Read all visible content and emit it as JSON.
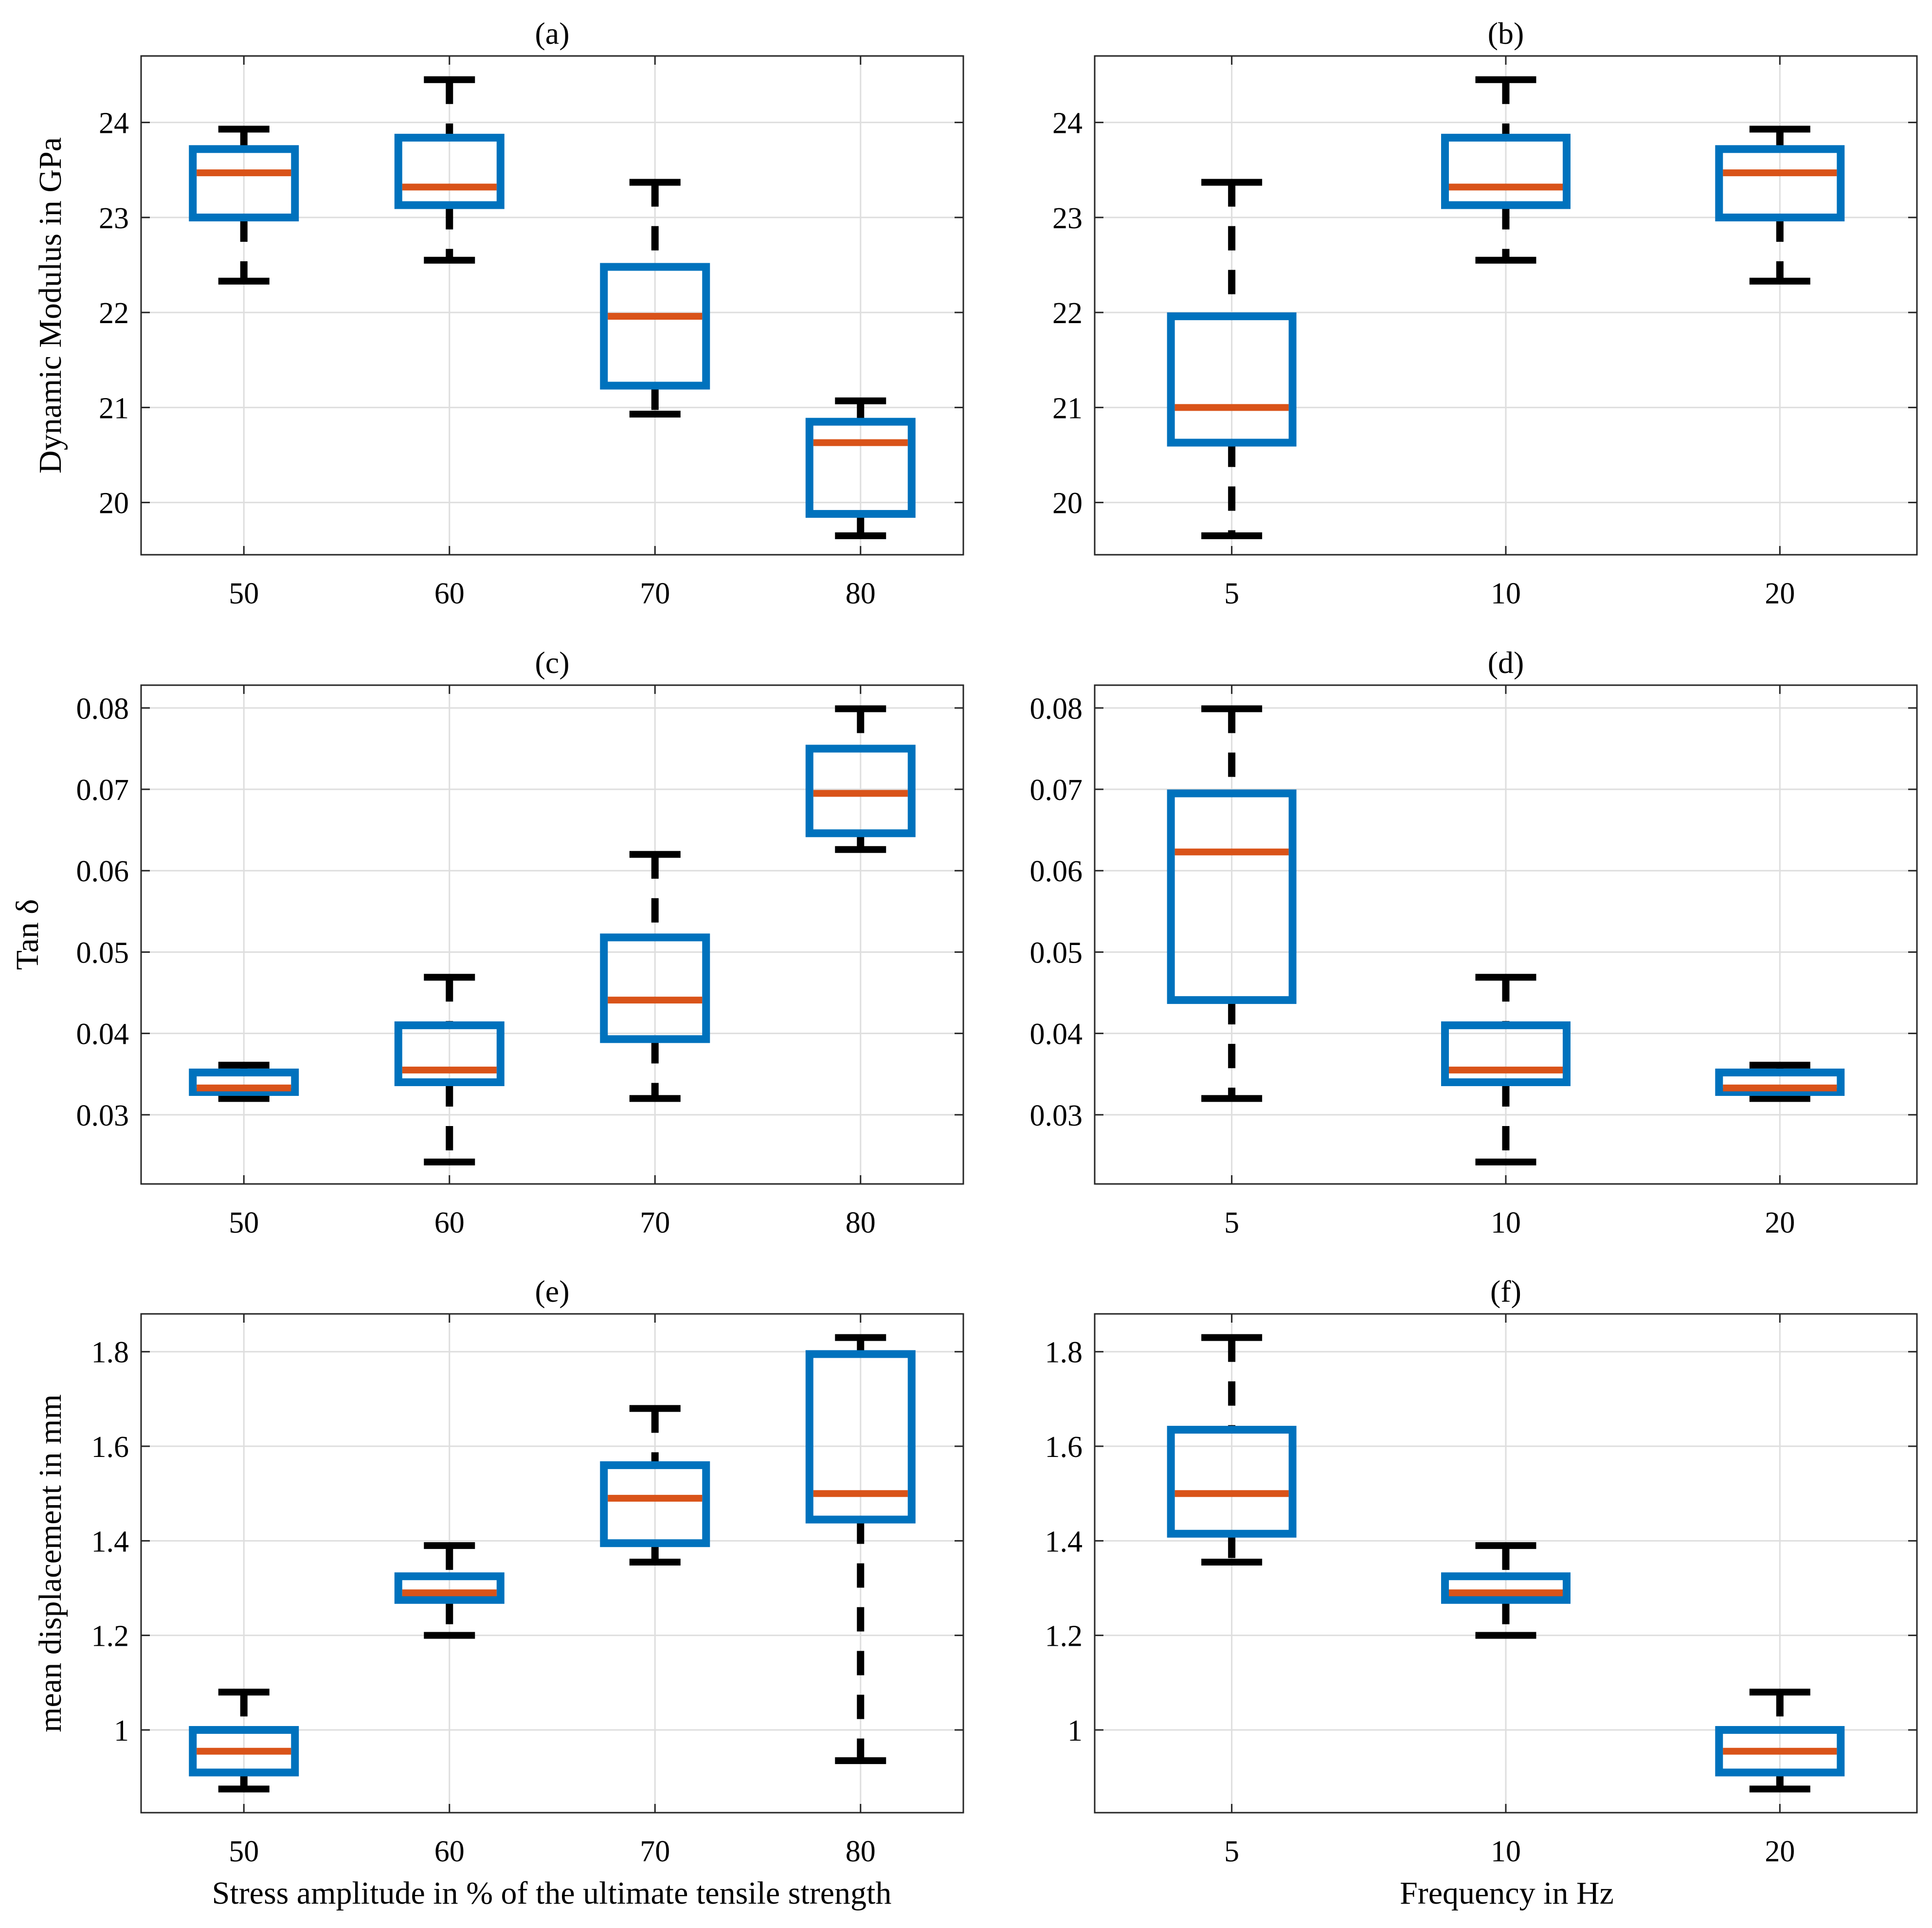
{
  "colors": {
    "box": "#0072BD",
    "median": "#D95319",
    "whisker": "#000000",
    "grid": "#DEDEDE",
    "axis": "#262626"
  },
  "xlabels": {
    "stress": "Stress amplitude in % of the ultimate tensile strength",
    "frequency": "Frequency in Hz"
  },
  "chart_data": [
    {
      "type": "box",
      "title": "(a)",
      "ylabel": "Dynamic Modulus in GPa",
      "xlabel": "",
      "categories": [
        "50",
        "60",
        "70",
        "80"
      ],
      "ylim": [
        19.45,
        24.7
      ],
      "yticks": [
        20,
        21,
        22,
        23,
        24
      ],
      "yticklabels": [
        "20",
        "21",
        "22",
        "23",
        "24"
      ],
      "grid": true,
      "boxes": [
        {
          "whisker_low": 22.33,
          "q1": 23.0,
          "median": 23.47,
          "q3": 23.72,
          "whisker_high": 23.93
        },
        {
          "whisker_low": 22.55,
          "q1": 23.13,
          "median": 23.32,
          "q3": 23.84,
          "whisker_high": 24.45
        },
        {
          "whisker_low": 20.93,
          "q1": 21.23,
          "median": 21.96,
          "q3": 22.48,
          "whisker_high": 23.37
        },
        {
          "whisker_low": 19.65,
          "q1": 19.88,
          "median": 20.63,
          "q3": 20.85,
          "whisker_high": 21.07
        }
      ]
    },
    {
      "type": "box",
      "title": "(b)",
      "ylabel": "",
      "xlabel": "",
      "categories": [
        "5",
        "10",
        "20"
      ],
      "ylim": [
        19.45,
        24.7
      ],
      "yticks": [
        20,
        21,
        22,
        23,
        24
      ],
      "yticklabels": [
        "20",
        "21",
        "22",
        "23",
        "24"
      ],
      "grid": true,
      "boxes": [
        {
          "whisker_low": 19.65,
          "q1": 20.63,
          "median": 21.0,
          "q3": 21.96,
          "whisker_high": 23.37
        },
        {
          "whisker_low": 22.55,
          "q1": 23.13,
          "median": 23.32,
          "q3": 23.84,
          "whisker_high": 24.45
        },
        {
          "whisker_low": 22.33,
          "q1": 23.0,
          "median": 23.47,
          "q3": 23.72,
          "whisker_high": 23.93
        }
      ]
    },
    {
      "type": "box",
      "title": "(c)",
      "ylabel": "Tan δ",
      "xlabel": "",
      "categories": [
        "50",
        "60",
        "70",
        "80"
      ],
      "ylim": [
        0.0215,
        0.0828
      ],
      "yticks": [
        0.03,
        0.04,
        0.05,
        0.06,
        0.07,
        0.08
      ],
      "yticklabels": [
        "0.03",
        "0.04",
        "0.05",
        "0.06",
        "0.07",
        "0.08"
      ],
      "grid": true,
      "boxes": [
        {
          "whisker_low": 0.032,
          "q1": 0.0328,
          "median": 0.0333,
          "q3": 0.0352,
          "whisker_high": 0.0361
        },
        {
          "whisker_low": 0.0242,
          "q1": 0.034,
          "median": 0.0355,
          "q3": 0.041,
          "whisker_high": 0.0469
        },
        {
          "whisker_low": 0.032,
          "q1": 0.0393,
          "median": 0.0441,
          "q3": 0.0518,
          "whisker_high": 0.062
        },
        {
          "whisker_low": 0.0626,
          "q1": 0.0646,
          "median": 0.0695,
          "q3": 0.075,
          "whisker_high": 0.0799
        }
      ]
    },
    {
      "type": "box",
      "title": "(d)",
      "ylabel": "",
      "xlabel": "",
      "categories": [
        "5",
        "10",
        "20"
      ],
      "ylim": [
        0.0215,
        0.0828
      ],
      "yticks": [
        0.03,
        0.04,
        0.05,
        0.06,
        0.07,
        0.08
      ],
      "yticklabels": [
        "0.03",
        "0.04",
        "0.05",
        "0.06",
        "0.07",
        "0.08"
      ],
      "grid": true,
      "boxes": [
        {
          "whisker_low": 0.032,
          "q1": 0.0441,
          "median": 0.0623,
          "q3": 0.0695,
          "whisker_high": 0.0799
        },
        {
          "whisker_low": 0.0242,
          "q1": 0.034,
          "median": 0.0355,
          "q3": 0.041,
          "whisker_high": 0.0469
        },
        {
          "whisker_low": 0.032,
          "q1": 0.0328,
          "median": 0.0333,
          "q3": 0.0352,
          "whisker_high": 0.0361
        }
      ]
    },
    {
      "type": "box",
      "title": "(e)",
      "ylabel": "mean displacement in mm",
      "xlabel": "Stress amplitude in % of the ultimate tensile strength",
      "categories": [
        "50",
        "60",
        "70",
        "80"
      ],
      "ylim": [
        0.825,
        1.88
      ],
      "yticks": [
        1.0,
        1.2,
        1.4,
        1.6,
        1.8
      ],
      "yticklabels": [
        "1",
        "1.2",
        "1.4",
        "1.6",
        "1.8"
      ],
      "grid": true,
      "boxes": [
        {
          "whisker_low": 0.875,
          "q1": 0.91,
          "median": 0.955,
          "q3": 1.0,
          "whisker_high": 1.08
        },
        {
          "whisker_low": 1.2,
          "q1": 1.275,
          "median": 1.29,
          "q3": 1.325,
          "whisker_high": 1.39
        },
        {
          "whisker_low": 1.355,
          "q1": 1.395,
          "median": 1.49,
          "q3": 1.56,
          "whisker_high": 1.68
        },
        {
          "whisker_low": 0.935,
          "q1": 1.445,
          "median": 1.5,
          "q3": 1.795,
          "whisker_high": 1.83
        }
      ]
    },
    {
      "type": "box",
      "title": "(f)",
      "ylabel": "",
      "xlabel": "Frequency in Hz",
      "categories": [
        "5",
        "10",
        "20"
      ],
      "ylim": [
        0.825,
        1.88
      ],
      "yticks": [
        1.0,
        1.2,
        1.4,
        1.6,
        1.8
      ],
      "yticklabels": [
        "1",
        "1.2",
        "1.4",
        "1.6",
        "1.8"
      ],
      "grid": true,
      "boxes": [
        {
          "whisker_low": 1.355,
          "q1": 1.415,
          "median": 1.5,
          "q3": 1.635,
          "whisker_high": 1.83
        },
        {
          "whisker_low": 1.2,
          "q1": 1.275,
          "median": 1.29,
          "q3": 1.325,
          "whisker_high": 1.39
        },
        {
          "whisker_low": 0.875,
          "q1": 0.91,
          "median": 0.955,
          "q3": 1.0,
          "whisker_high": 1.08
        }
      ]
    }
  ]
}
